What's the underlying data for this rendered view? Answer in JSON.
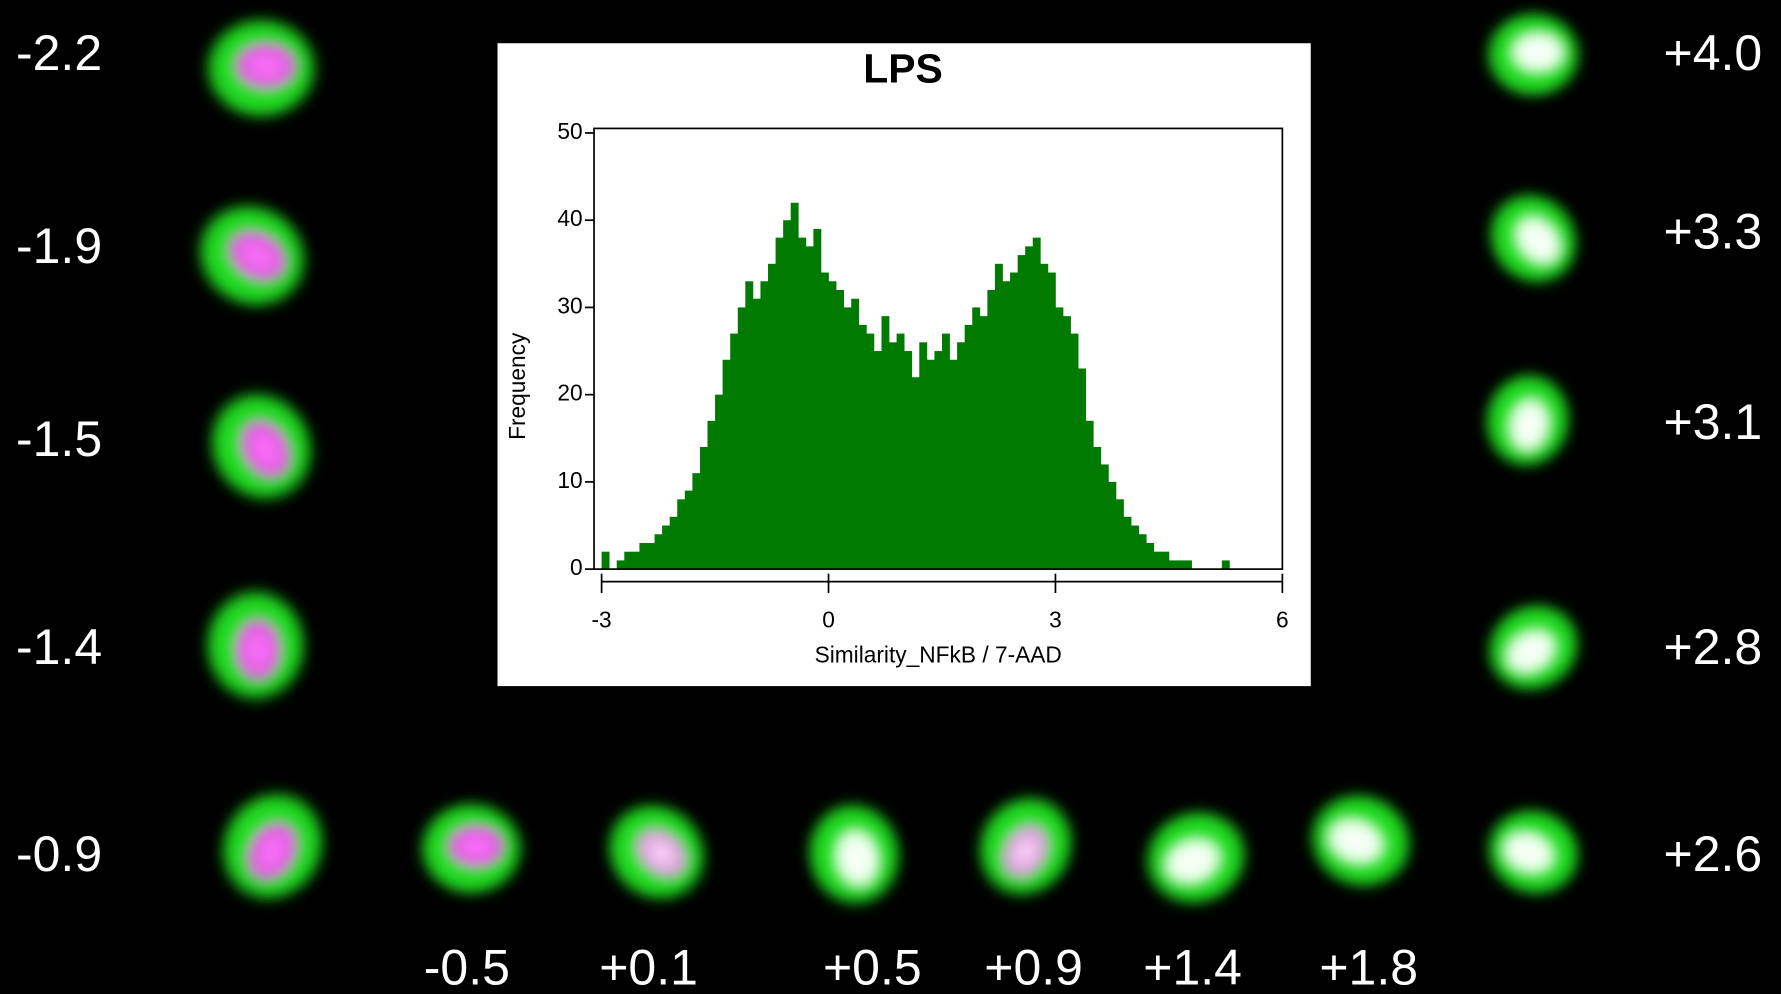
{
  "chart_data": {
    "type": "histogram",
    "title": "LPS",
    "x_label": "Similarity_NFkB / 7-AAD",
    "y_label": "Frequency",
    "color": "#007a00",
    "bins": [
      -3.0,
      -2.9,
      -2.8,
      -2.7,
      -2.6,
      -2.5,
      -2.4,
      -2.3,
      -2.2,
      -2.1,
      -2.0,
      -1.9,
      -1.8,
      -1.7,
      -1.6,
      -1.5,
      -1.4,
      -1.3,
      -1.2,
      -1.1,
      -1.0,
      -0.9,
      -0.8,
      -0.7,
      -0.6,
      -0.5,
      -0.4,
      -0.3,
      -0.2,
      -0.1,
      0.0,
      0.1,
      0.2,
      0.3,
      0.4,
      0.5,
      0.6,
      0.7,
      0.8,
      0.9,
      1.0,
      1.1,
      1.2,
      1.3,
      1.4,
      1.5,
      1.6,
      1.7,
      1.8,
      1.9,
      2.0,
      2.1,
      2.2,
      2.3,
      2.4,
      2.5,
      2.6,
      2.7,
      2.8,
      2.9,
      3.0,
      3.1,
      3.2,
      3.3,
      3.4,
      3.5,
      3.6,
      3.7,
      3.8,
      3.9,
      4.0,
      4.1,
      4.2,
      4.3,
      4.4,
      4.5,
      4.6,
      4.7,
      4.8,
      4.9,
      5.0,
      5.1,
      5.2,
      5.3,
      5.4
    ],
    "values": [
      2,
      0,
      1,
      2,
      2,
      3,
      3,
      4,
      5,
      6,
      8,
      9,
      11,
      14,
      17,
      20,
      24,
      27,
      30,
      33,
      31,
      33,
      35,
      38,
      40,
      42,
      38,
      37,
      39,
      34,
      33,
      32,
      30,
      31,
      28,
      27,
      25,
      29,
      26,
      27,
      25,
      22,
      26,
      24,
      25,
      27,
      24,
      26,
      28,
      30,
      29,
      32,
      35,
      33,
      34,
      36,
      37,
      38,
      35,
      34,
      30,
      29,
      27,
      23,
      17,
      14,
      12,
      10,
      8,
      6,
      5,
      4,
      3,
      2,
      2,
      1,
      1,
      1,
      0,
      0,
      0,
      0,
      1,
      0
    ],
    "xlim": [
      -3.1,
      6
    ],
    "xticks": [
      -3,
      0,
      3,
      6
    ],
    "ylim": [
      0,
      50
    ],
    "yticks": [
      0,
      10,
      20,
      30,
      40,
      50
    ]
  },
  "cell_labels": {
    "left": [
      "-2.2",
      "-1.9",
      "-1.5",
      "-1.4",
      "-0.9"
    ],
    "bottom": [
      "-0.5",
      "+0.1",
      "+0.5",
      "+0.9",
      "+1.4",
      "+1.8"
    ],
    "right": [
      "+4.0",
      "+3.3",
      "+3.1",
      "+2.8",
      "+2.6"
    ]
  }
}
